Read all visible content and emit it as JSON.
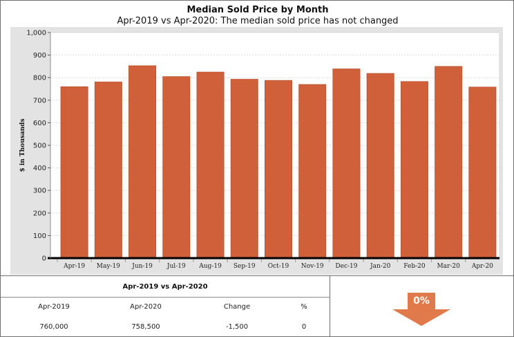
{
  "chart_data": {
    "type": "bar",
    "title": "Median Sold Price by Month",
    "subtitle": "Apr-2019 vs Apr-2020: The median sold price has not changed",
    "ylabel": "$ in Thousands",
    "xlabel": "",
    "categories": [
      "Apr-19",
      "May-19",
      "Jun-19",
      "Jul-19",
      "Aug-19",
      "Sep-19",
      "Oct-19",
      "Nov-19",
      "Dec-19",
      "Jan-20",
      "Feb-20",
      "Mar-20",
      "Apr-20"
    ],
    "values": [
      760,
      781,
      853,
      805,
      825,
      793,
      788,
      770,
      839,
      819,
      783,
      850,
      758.5
    ],
    "ylim": [
      0,
      1000
    ],
    "yticks": [
      0,
      100,
      200,
      300,
      400,
      500,
      600,
      700,
      800,
      900,
      1000
    ],
    "ytick_labels": [
      "0",
      "100",
      "200",
      "300",
      "400",
      "500",
      "600",
      "700",
      "800",
      "900",
      "1,000"
    ],
    "grid": true,
    "bar_color": "#d0603a",
    "plot_border_color": "#d6d6d6"
  },
  "summary": {
    "heading": "Apr-2019 vs Apr-2020",
    "headers": [
      "Apr-2019",
      "Apr-2020",
      "Change",
      "%"
    ],
    "values": [
      "760,000",
      "758,500",
      "-1,500",
      "0"
    ]
  },
  "change_indicator": {
    "label": "0%",
    "direction": "down",
    "icon": "down-arrow-icon",
    "color": "#e07a4a"
  }
}
